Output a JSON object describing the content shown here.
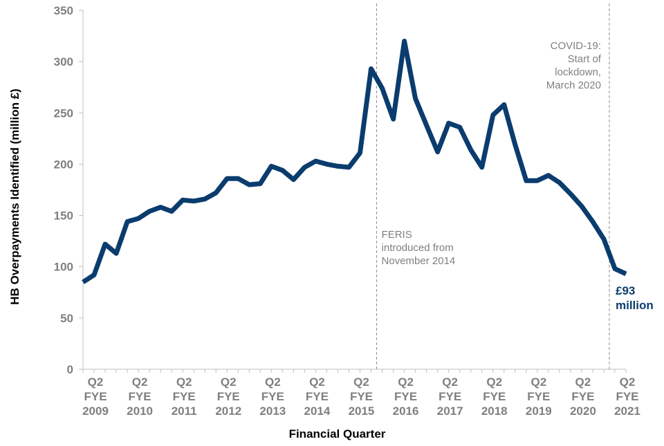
{
  "chart_data": {
    "type": "line",
    "title": "",
    "xlabel": "Financial Quarter",
    "ylabel": "HB Overpayments Identified (million £)",
    "ylim": [
      0,
      350
    ],
    "yticks": [
      0,
      50,
      100,
      150,
      200,
      250,
      300,
      350
    ],
    "x_tick_labels": [
      {
        "q": "Q2",
        "fye": "FYE",
        "year": "2009",
        "index": 0
      },
      {
        "q": "Q2",
        "fye": "FYE",
        "year": "2010",
        "index": 4
      },
      {
        "q": "Q2",
        "fye": "FYE",
        "year": "2011",
        "index": 8
      },
      {
        "q": "Q2",
        "fye": "FYE",
        "year": "2012",
        "index": 12
      },
      {
        "q": "Q2",
        "fye": "FYE",
        "year": "2013",
        "index": 16
      },
      {
        "q": "Q2",
        "fye": "FYE",
        "year": "2014",
        "index": 20
      },
      {
        "q": "Q2",
        "fye": "FYE",
        "year": "2015",
        "index": 24
      },
      {
        "q": "Q2",
        "fye": "FYE",
        "year": "2016",
        "index": 28
      },
      {
        "q": "Q2",
        "fye": "FYE",
        "year": "2017",
        "index": 32
      },
      {
        "q": "Q2",
        "fye": "FYE",
        "year": "2018",
        "index": 36
      },
      {
        "q": "Q2",
        "fye": "FYE",
        "year": "2019",
        "index": 40
      },
      {
        "q": "Q2",
        "fye": "FYE",
        "year": "2020",
        "index": 44
      },
      {
        "q": "Q2",
        "fye": "FYE",
        "year": "2021",
        "index": 48
      }
    ],
    "series": [
      {
        "name": "HB Overpayments Identified",
        "color": "#0b3c6e",
        "values": [
          85,
          92,
          122,
          113,
          144,
          147,
          154,
          158,
          154,
          165,
          164,
          166,
          172,
          186,
          186,
          180,
          181,
          198,
          194,
          185,
          197,
          203,
          200,
          198,
          197,
          211,
          293,
          274,
          244,
          320,
          264,
          238,
          212,
          240,
          236,
          214,
          197,
          248,
          258,
          219,
          184,
          184,
          189,
          182,
          171,
          159,
          144,
          127,
          98,
          93
        ]
      }
    ],
    "annotations": [
      {
        "lines": [
          "FERIS",
          "introduced from",
          "November 2014"
        ],
        "x_index": 26.5
      },
      {
        "lines": [
          "COVID-19:",
          "Start of",
          "lockdown,",
          "March 2020"
        ],
        "x_index": 47.5
      }
    ],
    "end_label": {
      "lines": [
        "£93",
        "million"
      ]
    }
  }
}
